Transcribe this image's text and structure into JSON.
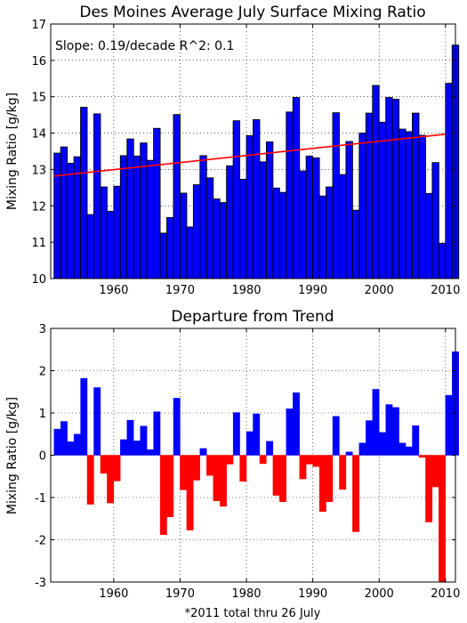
{
  "chart_data": [
    {
      "type": "bar",
      "title": "Des Moines Average July Surface Mixing Ratio",
      "xlabel": "",
      "ylabel": "Mixing Ratio [g/kg]",
      "annotation": "Slope: 0.19/decade R^2: 0.1",
      "xlim": [
        1950.5,
        2011.5
      ],
      "ylim": [
        10,
        17
      ],
      "xticks": [
        1960,
        1970,
        1980,
        1990,
        2000,
        2010
      ],
      "yticks": [
        10,
        11,
        12,
        13,
        14,
        15,
        16,
        17
      ],
      "grid": true,
      "bar_color": "#0000ff",
      "trend_color": "#ff0000",
      "trend": {
        "x": [
          1951,
          2010
        ],
        "y": [
          12.82,
          13.97
        ]
      },
      "x": [
        1951,
        1952,
        1953,
        1954,
        1955,
        1956,
        1957,
        1958,
        1959,
        1960,
        1961,
        1962,
        1963,
        1964,
        1965,
        1966,
        1967,
        1968,
        1969,
        1970,
        1971,
        1972,
        1973,
        1974,
        1975,
        1976,
        1977,
        1978,
        1979,
        1980,
        1981,
        1982,
        1983,
        1984,
        1985,
        1986,
        1987,
        1988,
        1989,
        1990,
        1991,
        1992,
        1993,
        1994,
        1995,
        1996,
        1997,
        1998,
        1999,
        2000,
        2001,
        2002,
        2003,
        2004,
        2005,
        2006,
        2007,
        2008,
        2009,
        2010,
        2011
      ],
      "values": [
        13.45,
        13.62,
        13.17,
        13.35,
        14.71,
        11.76,
        14.53,
        12.52,
        11.85,
        12.54,
        13.38,
        13.84,
        13.37,
        13.73,
        13.25,
        14.13,
        11.25,
        11.68,
        14.51,
        12.35,
        11.42,
        12.58,
        13.38,
        12.77,
        12.19,
        12.09,
        13.1,
        14.34,
        12.73,
        13.93,
        14.37,
        13.21,
        13.76,
        12.49,
        12.37,
        14.58,
        14.98,
        12.96,
        13.37,
        13.32,
        12.27,
        12.52,
        14.56,
        12.86,
        13.77,
        11.88,
        14.0,
        14.55,
        15.31,
        14.3,
        14.98,
        14.93,
        14.11,
        14.04,
        14.55,
        13.94,
        12.34,
        13.19,
        10.97,
        15.37,
        16.42
      ]
    },
    {
      "type": "bar",
      "title": "Departure from Trend",
      "xlabel": "*2011 total thru 26 July",
      "ylabel": "Mixing Ratio [g/kg]",
      "xlim": [
        1950.5,
        2011.5
      ],
      "ylim": [
        -3,
        3
      ],
      "xticks": [
        1960,
        1970,
        1980,
        1990,
        2000,
        2010
      ],
      "yticks": [
        -3,
        -2,
        -1,
        0,
        1,
        2,
        3
      ],
      "grid": true,
      "positive_color": "#0000ff",
      "negative_color": "#ff0000",
      "x": [
        1951,
        1952,
        1953,
        1954,
        1955,
        1956,
        1957,
        1958,
        1959,
        1960,
        1961,
        1962,
        1963,
        1964,
        1965,
        1966,
        1967,
        1968,
        1969,
        1970,
        1971,
        1972,
        1973,
        1974,
        1975,
        1976,
        1977,
        1978,
        1979,
        1980,
        1981,
        1982,
        1983,
        1984,
        1985,
        1986,
        1987,
        1988,
        1989,
        1990,
        1991,
        1992,
        1993,
        1994,
        1995,
        1996,
        1997,
        1998,
        1999,
        2000,
        2001,
        2002,
        2003,
        2004,
        2005,
        2006,
        2007,
        2008,
        2009,
        2010,
        2011
      ],
      "values": [
        0.62,
        0.8,
        0.32,
        0.5,
        1.82,
        -1.16,
        1.6,
        -0.43,
        -1.13,
        -0.61,
        0.37,
        0.83,
        0.34,
        0.69,
        0.13,
        1.03,
        -1.88,
        -1.46,
        1.35,
        -0.82,
        -1.77,
        -0.59,
        0.16,
        -0.48,
        -1.08,
        -1.21,
        -0.21,
        1.01,
        -0.62,
        0.56,
        0.98,
        -0.2,
        0.33,
        -0.95,
        -1.1,
        1.1,
        1.48,
        -0.56,
        -0.21,
        -0.27,
        -1.33,
        -1.1,
        0.92,
        -0.81,
        0.08,
        -1.81,
        0.29,
        0.82,
        1.56,
        0.54,
        1.2,
        1.13,
        0.29,
        0.2,
        0.7,
        -0.05,
        -1.58,
        -0.75,
        -3.0,
        1.42,
        2.45
      ]
    }
  ]
}
